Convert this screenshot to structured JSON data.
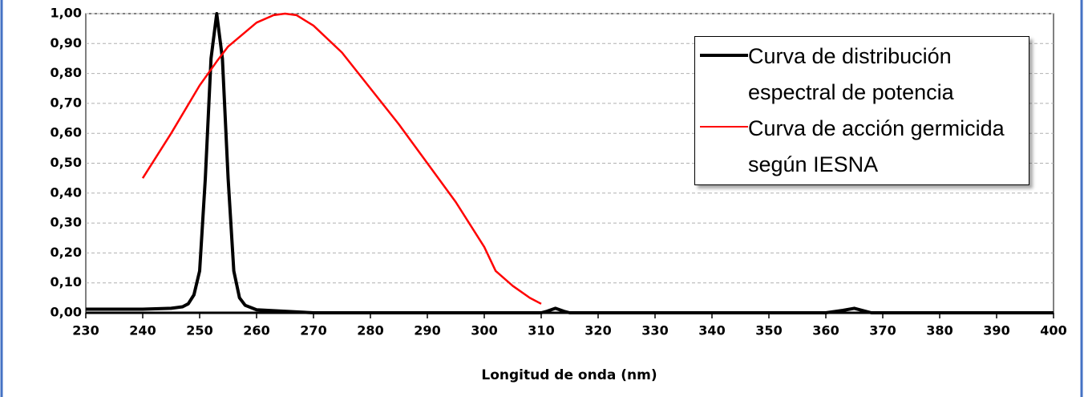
{
  "chart_data": {
    "type": "line",
    "x_label": "Longitud de onda (nm)",
    "xlim": [
      230,
      400
    ],
    "xticks": [
      230,
      240,
      250,
      260,
      270,
      280,
      290,
      300,
      310,
      320,
      330,
      340,
      350,
      360,
      370,
      380,
      390,
      400
    ],
    "ylim": [
      0,
      1
    ],
    "yticks": [
      {
        "value": 0,
        "label": "0,00"
      },
      {
        "value": 0.1,
        "label": "0,10"
      },
      {
        "value": 0.2,
        "label": "0,20"
      },
      {
        "value": 0.3,
        "label": "0,30"
      },
      {
        "value": 0.4,
        "label": "0,40"
      },
      {
        "value": 0.5,
        "label": "0,50"
      },
      {
        "value": 0.6,
        "label": "0,60"
      },
      {
        "value": 0.7,
        "label": "0,70"
      },
      {
        "value": 0.8,
        "label": "0,80"
      },
      {
        "value": 0.9,
        "label": "0,90"
      },
      {
        "value": 1,
        "label": "1,00"
      }
    ],
    "grid": true,
    "legend": "top-right",
    "series": [
      {
        "name": "Curva de distribución espectral de potencia",
        "color": "#000000",
        "x": [
          230,
          240,
          245,
          247,
          248,
          249,
          250,
          251,
          252,
          253,
          254,
          255,
          256,
          257,
          258,
          260,
          265,
          270,
          310,
          311,
          312.5,
          314,
          315,
          360,
          363,
          365,
          367,
          368,
          400
        ],
        "values": [
          0.012,
          0.012,
          0.015,
          0.02,
          0.03,
          0.06,
          0.14,
          0.45,
          0.85,
          1.0,
          0.85,
          0.45,
          0.14,
          0.05,
          0.025,
          0.01,
          0.005,
          0.0,
          0.0,
          0.005,
          0.015,
          0.005,
          0.0,
          0.0,
          0.008,
          0.015,
          0.005,
          0.0,
          0.0
        ]
      },
      {
        "name": "Curva de acción germicida según IESNA",
        "color": "#ff0000",
        "x": [
          240,
          245,
          250,
          253,
          255,
          260,
          263,
          265,
          267,
          270,
          275,
          280,
          285,
          290,
          295,
          300,
          302,
          305,
          308,
          310
        ],
        "values": [
          0.45,
          0.6,
          0.76,
          0.84,
          0.89,
          0.97,
          0.995,
          1.0,
          0.995,
          0.96,
          0.87,
          0.75,
          0.63,
          0.5,
          0.37,
          0.22,
          0.14,
          0.09,
          0.05,
          0.03
        ]
      }
    ]
  }
}
